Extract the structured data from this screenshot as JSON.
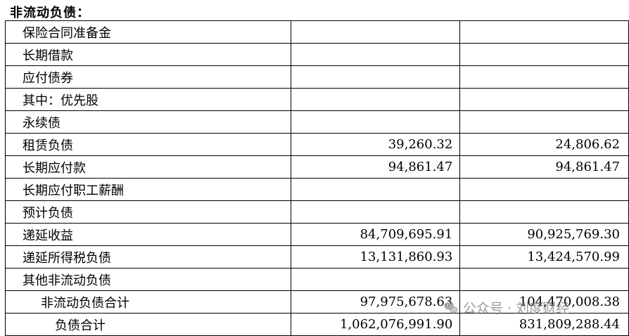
{
  "section_title": "非流动负债：",
  "rows": [
    {
      "label": "保险合同准备金",
      "current": "",
      "prior": ""
    },
    {
      "label": "长期借款",
      "current": "",
      "prior": ""
    },
    {
      "label": "应付债券",
      "current": "",
      "prior": ""
    },
    {
      "label": "其中：优先股",
      "current": "",
      "prior": ""
    },
    {
      "label": "永续债",
      "current": "",
      "prior": ""
    },
    {
      "label": "租赁负债",
      "current": "39,260.32",
      "prior": "24,806.62"
    },
    {
      "label": "长期应付款",
      "current": "94,861.47",
      "prior": "94,861.47"
    },
    {
      "label": "长期应付职工薪酬",
      "current": "",
      "prior": ""
    },
    {
      "label": "预计负债",
      "current": "",
      "prior": ""
    },
    {
      "label": "递延收益",
      "current": "84,709,695.91",
      "prior": "90,925,769.30"
    },
    {
      "label": "递延所得税负债",
      "current": "13,131,860.93",
      "prior": "13,424,570.99"
    },
    {
      "label": "其他非流动负债",
      "current": "",
      "prior": ""
    },
    {
      "label": "非流动负债合计",
      "current": "97,975,678.63",
      "prior": "104,470,008.38"
    },
    {
      "label": "负债合计",
      "current": "1,062,076,991.90",
      "prior": "831,809,288.44"
    }
  ],
  "watermark": {
    "text": "公众号 · 刘度财经",
    "icon": "wechat-icon"
  }
}
